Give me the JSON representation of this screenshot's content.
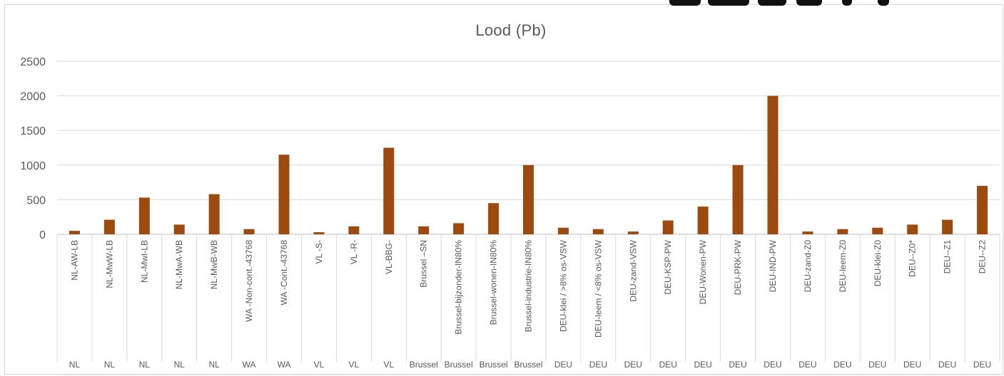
{
  "chart_data": {
    "type": "bar",
    "title": "Lood (Pb)",
    "xlabel": "",
    "ylabel": "",
    "ylim": [
      0,
      2500
    ],
    "yticks": [
      0,
      500,
      1000,
      1500,
      2000,
      2500
    ],
    "grid": true,
    "legend": "none",
    "bar_color": "#9c4a0f",
    "categories": [
      "NL-AW-LB",
      "NL-MwW-LB",
      "NL-MwI-LB",
      "NL-MwA-WB",
      "NL-MwB-WB",
      "WA -Non-cont.-43768",
      "WA -Cont.-43768",
      "VL -S-",
      "VL -R-",
      "VL-BBG-",
      "Brussel –SN",
      "Brussel-bijzonder-IN80%",
      "Brussel-wonen-IN80%",
      "Brussel-industrie-IN80%",
      "DEU-klei / >8% os-VSW",
      "DEU-leem / <8% os-VSW",
      "DEU-zand-VSW",
      "DEU-KSP-PW",
      "DEU-Wonen-PW",
      "DEU-PRK-PW",
      "DEU-IND-PW",
      "DEU-zand-Z0",
      "DEU-leem-Z0",
      "DEU-klei-Z0",
      "DEU--Z0*",
      "DEU--Z1",
      "DEU--Z2"
    ],
    "groups": [
      "NL",
      "NL",
      "NL",
      "NL",
      "NL",
      "WA",
      "WA",
      "VL",
      "VL",
      "VL",
      "Brussel",
      "Brussel",
      "Brussel",
      "Brussel",
      "DEU",
      "DEU",
      "DEU",
      "DEU",
      "DEU",
      "DEU",
      "DEU",
      "DEU",
      "DEU",
      "DEU",
      "DEU",
      "DEU",
      "DEU"
    ],
    "values": [
      50,
      210,
      530,
      140,
      580,
      75,
      1150,
      30,
      115,
      1250,
      115,
      160,
      450,
      1000,
      95,
      75,
      40,
      200,
      400,
      1000,
      2000,
      40,
      75,
      95,
      140,
      210,
      700
    ]
  }
}
